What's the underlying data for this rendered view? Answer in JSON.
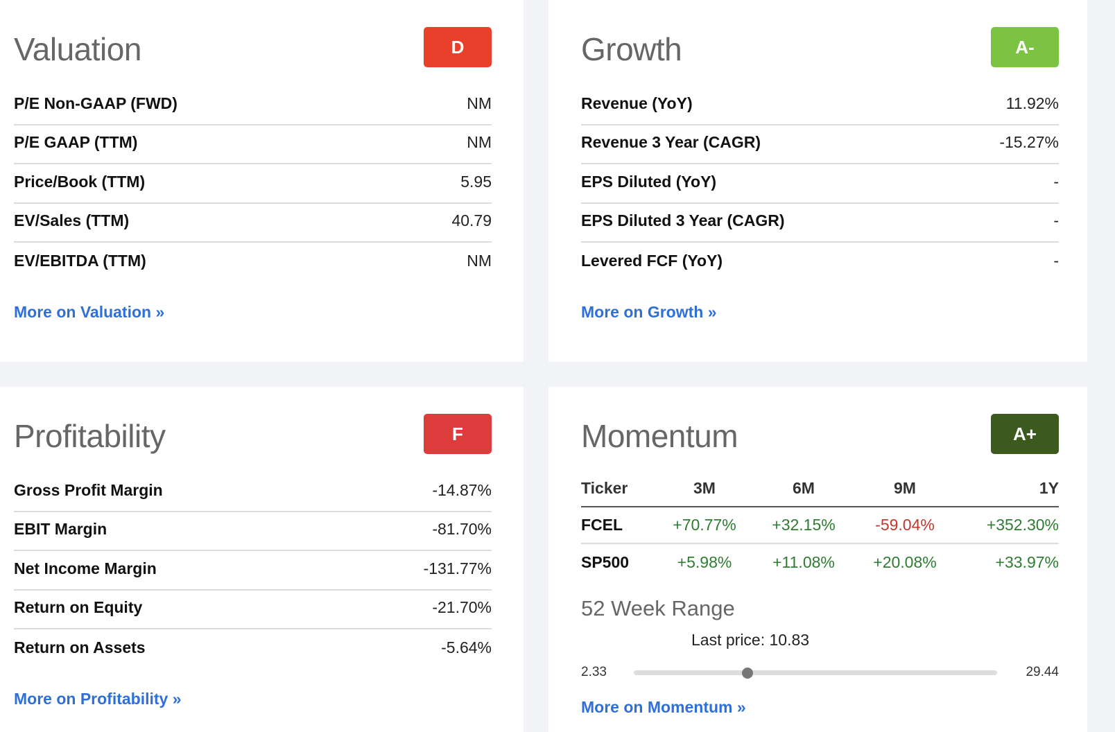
{
  "valuation": {
    "title": "Valuation",
    "grade": "D",
    "grade_color": "#e8402a",
    "rows": [
      {
        "label": "P/E Non-GAAP (FWD)",
        "value": "NM"
      },
      {
        "label": "P/E GAAP (TTM)",
        "value": "NM"
      },
      {
        "label": "Price/Book (TTM)",
        "value": "5.95"
      },
      {
        "label": "EV/Sales (TTM)",
        "value": "40.79"
      },
      {
        "label": "EV/EBITDA (TTM)",
        "value": "NM"
      }
    ],
    "more_link": "More on Valuation »"
  },
  "growth": {
    "title": "Growth",
    "grade": "A-",
    "grade_color": "#7cc243",
    "rows": [
      {
        "label": "Revenue (YoY)",
        "value": "11.92%"
      },
      {
        "label": "Revenue 3 Year (CAGR)",
        "value": "-15.27%"
      },
      {
        "label": "EPS Diluted (YoY)",
        "value": "-"
      },
      {
        "label": "EPS Diluted 3 Year (CAGR)",
        "value": "-"
      },
      {
        "label": "Levered FCF (YoY)",
        "value": "-"
      }
    ],
    "more_link": "More on Growth »"
  },
  "profitability": {
    "title": "Profitability",
    "grade": "F",
    "grade_color": "#dc3c3c",
    "rows": [
      {
        "label": "Gross Profit Margin",
        "value": "-14.87%"
      },
      {
        "label": "EBIT Margin",
        "value": "-81.70%"
      },
      {
        "label": "Net Income Margin",
        "value": "-131.77%"
      },
      {
        "label": "Return on Equity",
        "value": "-21.70%"
      },
      {
        "label": "Return on Assets",
        "value": "-5.64%"
      }
    ],
    "more_link": "More on Profitability »"
  },
  "momentum": {
    "title": "Momentum",
    "grade": "A+",
    "grade_color": "#3d5a1e",
    "table": {
      "headers": [
        "Ticker",
        "3M",
        "6M",
        "9M",
        "1Y"
      ],
      "rows": [
        {
          "ticker": "FCEL",
          "values": [
            "+70.77%",
            "+32.15%",
            "-59.04%",
            "+352.30%"
          ]
        },
        {
          "ticker": "SP500",
          "values": [
            "+5.98%",
            "+11.08%",
            "+20.08%",
            "+33.97%"
          ]
        }
      ]
    },
    "range": {
      "title": "52 Week Range",
      "last_price_label": "Last price: 10.83",
      "low": "2.33",
      "high": "29.44",
      "last_price": 10.83,
      "low_value": 2.33,
      "high_value": 29.44
    },
    "more_link": "More on Momentum »"
  },
  "colors": {
    "positive": "#2e7d32",
    "negative": "#c0392b",
    "link": "#2e6fd8"
  }
}
